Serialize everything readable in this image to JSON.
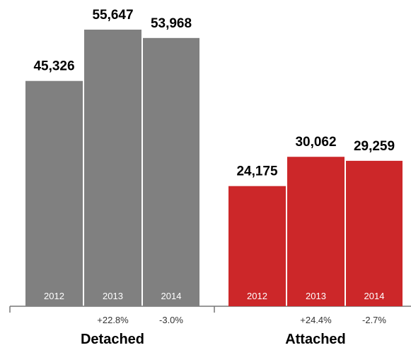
{
  "chart_data": {
    "type": "bar",
    "title": "",
    "xlabel": "",
    "ylabel": "",
    "ylim": [
      0,
      60000
    ],
    "grid": false,
    "legend": "none",
    "groups": [
      {
        "name": "Detached",
        "color": "#808080",
        "bars": [
          {
            "year": "2012",
            "value": 45326,
            "label": "45,326",
            "change": ""
          },
          {
            "year": "2013",
            "value": 55647,
            "label": "55,647",
            "change": "+22.8%"
          },
          {
            "year": "2014",
            "value": 53968,
            "label": "53,968",
            "change": "-3.0%"
          }
        ]
      },
      {
        "name": "Attached",
        "color": "#cc2729",
        "bars": [
          {
            "year": "2012",
            "value": 24175,
            "label": "24,175",
            "change": ""
          },
          {
            "year": "2013",
            "value": 30062,
            "label": "30,062",
            "change": "+24.4%"
          },
          {
            "year": "2014",
            "value": 29259,
            "label": "29,259",
            "change": "-2.7%"
          }
        ]
      }
    ]
  },
  "colors": {
    "year_label": "#ffffff",
    "value_label": "#000000",
    "change_label": "#333333",
    "axis": "#777777"
  }
}
